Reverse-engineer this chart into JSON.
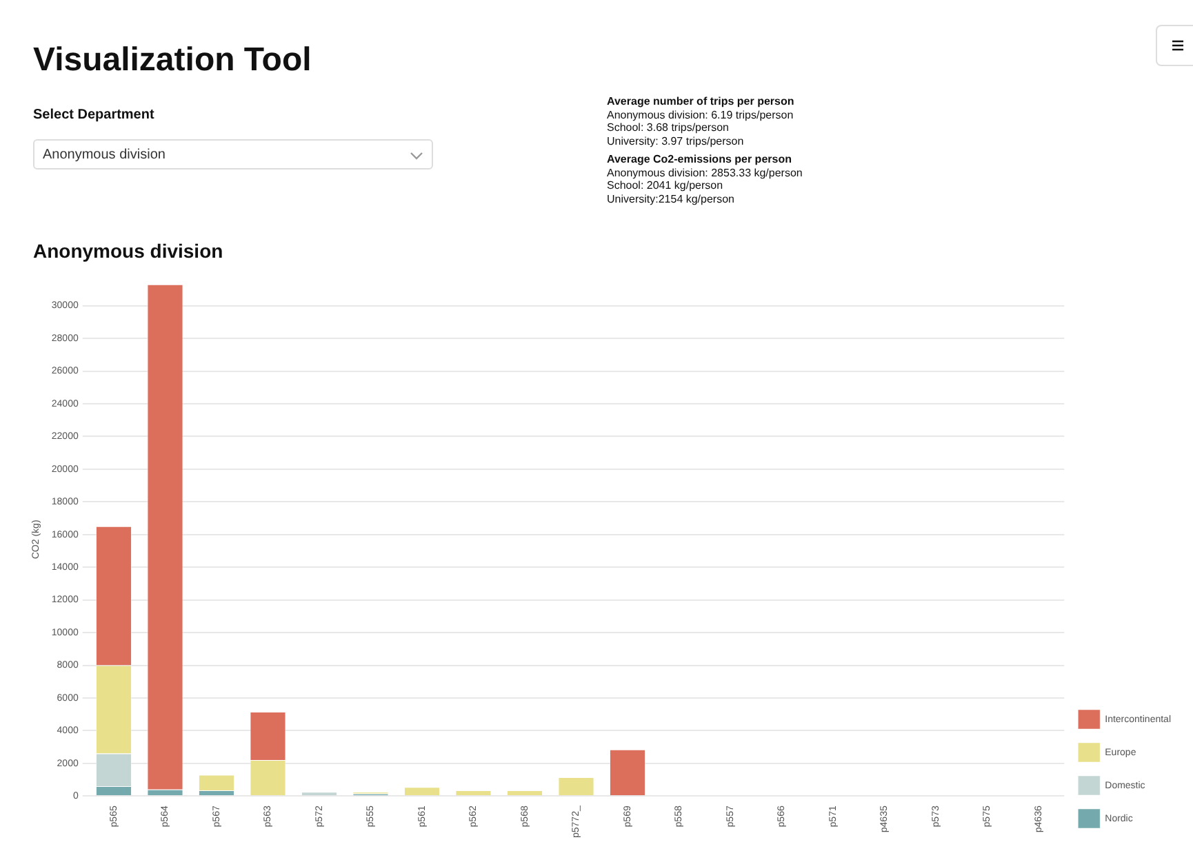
{
  "chart_data": {
    "type": "bar",
    "stacked": true,
    "title": "Anonymous division",
    "ylabel": "CO2 (kg)",
    "annotations": [
      "Visualization Tool",
      "Select Department",
      "Anonymous division",
      "Average number of trips per person",
      "Anonymous division: 6.19 trips/person",
      "School: 3.68 trips/person",
      "University: 3.97 trips/person",
      "Average Co2-emissions per person",
      "Anonymous division: 2853.33 kg/person",
      "School: 2041 kg/person",
      "University:2154 kg/person"
    ],
    "categories": [
      "p565",
      "p564",
      "p567",
      "p563",
      "p572",
      "p555",
      "p561",
      "p562",
      "p568",
      "p5772_",
      "p569",
      "p558",
      "p557",
      "p566",
      "p571",
      "p4635",
      "p573",
      "p575",
      "p4636"
    ],
    "series": [
      {
        "name": "Nordic",
        "color": "#74a9ad",
        "values": [
          600,
          400,
          350,
          0,
          0,
          150,
          0,
          0,
          0,
          0,
          0,
          0,
          0,
          0,
          0,
          0,
          0,
          0,
          0
        ]
      },
      {
        "name": "Domestic",
        "color": "#c3d6d3",
        "values": [
          2000,
          0,
          0,
          0,
          250,
          null,
          0,
          0,
          0,
          0,
          0,
          0,
          0,
          0,
          0,
          0,
          0,
          0,
          0
        ]
      },
      {
        "name": "Europe",
        "color": "#e8e08a",
        "values": [
          5400,
          0,
          950,
          2200,
          0,
          100,
          550,
          350,
          350,
          1150,
          0,
          0,
          0,
          0,
          0,
          0,
          0,
          0,
          0
        ]
      },
      {
        "name": "Intercontinental",
        "color": "#dc6e5c",
        "values": [
          8500,
          30900,
          0,
          2950,
          0,
          0,
          0,
          0,
          0,
          0,
          2850,
          0,
          0,
          0,
          0,
          0,
          0,
          0,
          0
        ]
      }
    ],
    "ylim": [
      0,
      31400
    ],
    "yticks": [
      0,
      2000,
      4000,
      6000,
      8000,
      10000,
      12000,
      14000,
      16000,
      18000,
      20000,
      22000,
      24000,
      26000,
      28000,
      30000
    ],
    "grid": "y",
    "legend": "bottom right"
  }
}
